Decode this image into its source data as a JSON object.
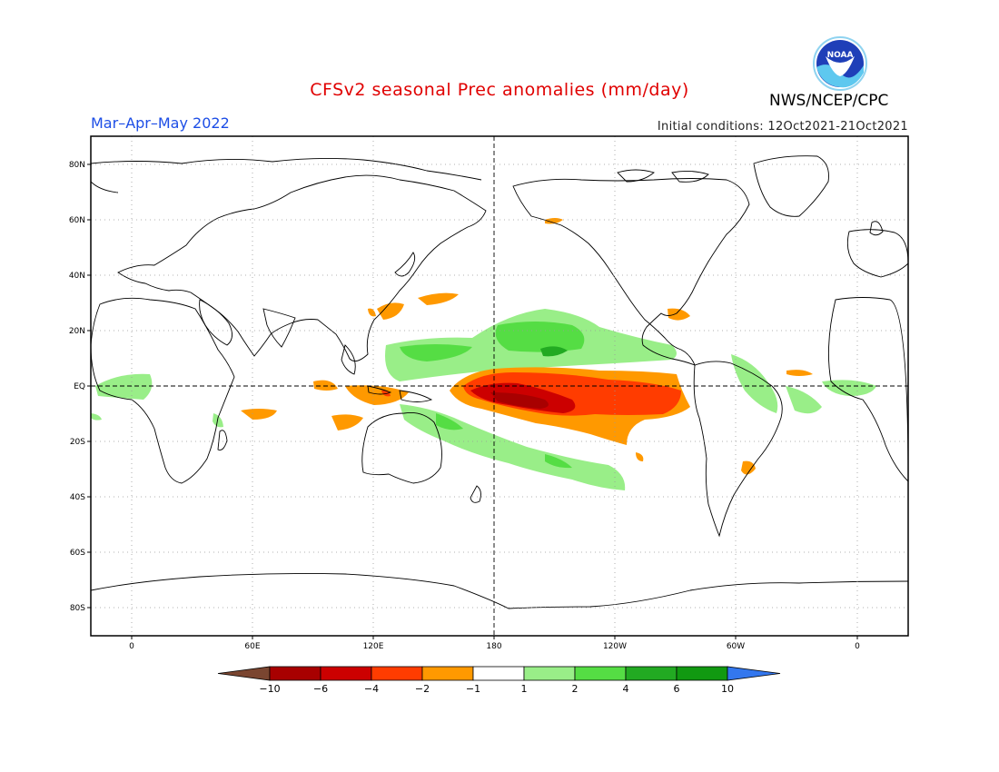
{
  "header": {
    "title": "CFSv2 seasonal Prec anomalies (mm/day)",
    "title_color": "#e00000",
    "season": "Mar–Apr–May 2022",
    "season_color": "#1d4ee6",
    "initial_conditions": "Initial conditions: 12Oct2021-21Oct2021",
    "agency": "NWS/NCEP/CPC",
    "logo_text": "NOAA"
  },
  "map": {
    "projection": "cylindrical",
    "lon_range": [
      "20W",
      "20E"
    ],
    "lat_range": [
      -90,
      90
    ],
    "lat_ticks": [
      "80N",
      "60N",
      "40N",
      "20N",
      "EQ",
      "20S",
      "40S",
      "60S",
      "80S"
    ],
    "lon_ticks": [
      "0",
      "60E",
      "120E",
      "180",
      "120W",
      "60W",
      "0"
    ],
    "grid": "dotted",
    "reference_lines": [
      "EQ",
      "180"
    ]
  },
  "colorbar": {
    "labels": [
      "-10",
      "-6",
      "-4",
      "-2",
      "-1",
      "1",
      "2",
      "4",
      "6",
      "10"
    ],
    "colors": [
      "#7a4530",
      "#a80000",
      "#cc0000",
      "#ff3c00",
      "#ff9900",
      "#ffffff",
      "#99ee88",
      "#55dd44",
      "#22aa22",
      "#119911",
      "#3377ee"
    ]
  }
}
